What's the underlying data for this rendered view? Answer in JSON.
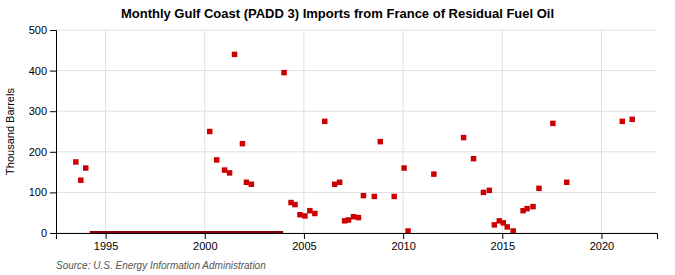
{
  "chart_data": {
    "type": "scatter",
    "title": "Monthly Gulf Coast (PADD 3) Imports from France of Residual Fuel Oil",
    "ylabel": "Thousand Barrels",
    "source": "Source: U.S. Energy Information Administration",
    "xlim": [
      1992.5,
      2022.8
    ],
    "xticks": [
      1995,
      2000,
      2005,
      2010,
      2015,
      2020
    ],
    "ylim": [
      0,
      500
    ],
    "yticks": [
      0,
      100,
      200,
      300,
      400,
      500
    ],
    "grid": true,
    "series": [
      {
        "type": "scatter",
        "marker": "square",
        "color": "#cc0000",
        "x": [
          1993.5,
          1993.75,
          1994.0,
          2000.25,
          2000.6,
          2001.0,
          2001.25,
          2001.5,
          2001.9,
          2002.1,
          2002.35,
          2004.0,
          2004.35,
          2004.55,
          2004.8,
          2005.05,
          2005.3,
          2005.55,
          2006.05,
          2006.55,
          2006.8,
          2007.05,
          2007.25,
          2007.5,
          2007.75,
          2008.0,
          2008.55,
          2008.85,
          2009.55,
          2010.05,
          2010.25,
          2011.55,
          2013.05,
          2013.55,
          2014.05,
          2014.35,
          2014.6,
          2014.85,
          2015.05,
          2015.25,
          2015.55,
          2016.05,
          2016.25,
          2016.55,
          2016.85,
          2017.55,
          2018.25,
          2021.05,
          2021.55
        ],
        "values": [
          175,
          130,
          160,
          250,
          180,
          155,
          148,
          440,
          220,
          125,
          120,
          395,
          75,
          70,
          45,
          42,
          55,
          48,
          275,
          120,
          125,
          30,
          32,
          40,
          38,
          92,
          90,
          225,
          90,
          160,
          5,
          145,
          235,
          183,
          100,
          105,
          20,
          30,
          25,
          15,
          5,
          55,
          60,
          65,
          110,
          270,
          125,
          275,
          280
        ]
      },
      {
        "type": "line",
        "color": "#8b0000",
        "x": [
          1994.2,
          2003.95
        ],
        "values": [
          0,
          0
        ]
      }
    ]
  }
}
